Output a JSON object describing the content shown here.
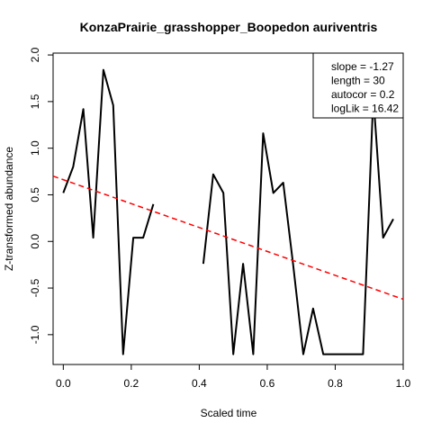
{
  "chart_data": {
    "type": "line",
    "title": "KonzaPrairie_grasshopper_Boopedon auriventris",
    "xlabel": "Scaled time",
    "ylabel": "Z-transformed abundance",
    "xlim": [
      -0.03,
      1.0
    ],
    "ylim": [
      -1.32,
      2.02
    ],
    "x_ticks": [
      "0.0",
      "0.2",
      "0.4",
      "0.6",
      "0.8",
      "1.0"
    ],
    "y_ticks": [
      "-1.0",
      "-0.5",
      "0.0",
      "0.5",
      "1.0",
      "1.5",
      "2.0"
    ],
    "x_tick_values": [
      0.0,
      0.2,
      0.4,
      0.6,
      0.8,
      1.0
    ],
    "y_tick_values": [
      -1.0,
      -0.5,
      0.0,
      0.5,
      1.0,
      1.5,
      2.0
    ],
    "grid": false,
    "series": [
      {
        "color": "#000000",
        "style": "solid",
        "x": [
          0.0,
          0.029,
          0.059,
          0.088,
          0.118,
          0.147,
          0.176,
          0.206,
          0.235,
          0.265,
          null,
          0.412,
          0.441,
          0.471,
          0.5,
          0.529,
          0.559,
          0.588,
          0.618,
          0.647,
          0.676,
          0.706,
          0.735,
          0.765,
          0.794,
          0.824,
          0.853,
          0.882,
          0.912,
          0.941,
          0.971
        ],
        "values": [
          0.52,
          0.8,
          1.42,
          0.04,
          1.84,
          1.46,
          -1.21,
          0.04,
          0.04,
          0.4,
          null,
          -0.24,
          0.72,
          0.52,
          -1.21,
          -0.24,
          -1.21,
          1.16,
          0.52,
          0.63,
          -0.24,
          -1.21,
          -0.72,
          -1.21,
          -1.21,
          -1.21,
          -1.21,
          -1.21,
          1.56,
          0.04,
          0.24
        ]
      },
      {
        "color": "#ff0000",
        "style": "dashed",
        "x": [
          -0.03,
          1.0
        ],
        "values": [
          0.7,
          -0.62
        ]
      }
    ],
    "legend": {
      "placement": "top-right",
      "entries": [
        "slope = -1.27",
        "length = 30",
        "autocor = 0.2",
        "logLik = 16.42"
      ]
    }
  }
}
